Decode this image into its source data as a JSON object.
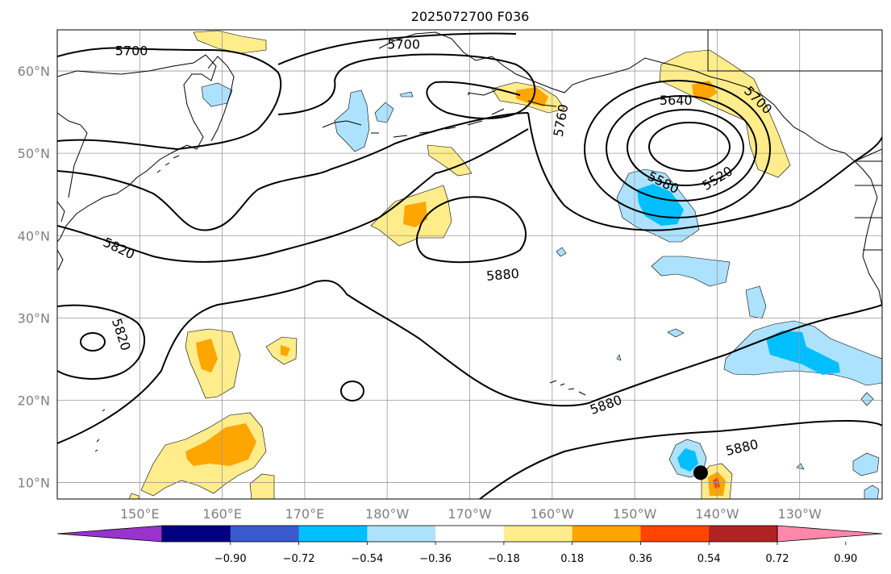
{
  "map": {
    "title": "2025072700 F036",
    "projection": "PlateCarree",
    "lon_range": [
      140,
      240
    ],
    "lat_range": [
      8,
      65
    ],
    "lat_ticks": [
      {
        "value": 10,
        "label": "10°N"
      },
      {
        "value": 20,
        "label": "20°N"
      },
      {
        "value": 30,
        "label": "30°N"
      },
      {
        "value": 40,
        "label": "40°N"
      },
      {
        "value": 50,
        "label": "50°N"
      },
      {
        "value": 60,
        "label": "60°N"
      }
    ],
    "lon_ticks": [
      {
        "value": 150,
        "label": "150°E"
      },
      {
        "value": 160,
        "label": "160°E"
      },
      {
        "value": 170,
        "label": "170°E"
      },
      {
        "value": 180,
        "label": "180°W"
      },
      {
        "value": 190,
        "label": "170°W"
      },
      {
        "value": 200,
        "label": "160°W"
      },
      {
        "value": 210,
        "label": "150°W"
      },
      {
        "value": 220,
        "label": "140°W"
      },
      {
        "value": 230,
        "label": "130°W"
      }
    ],
    "grid": true,
    "contour_labels": [
      {
        "text": "5700",
        "lon": 149,
        "lat": 62.5,
        "rot": 0
      },
      {
        "text": "5700",
        "lon": 182,
        "lat": 63.3,
        "rot": 0
      },
      {
        "text": "5760",
        "lon": 201,
        "lat": 54,
        "rot": -80
      },
      {
        "text": "5640",
        "lon": 215,
        "lat": 56.5,
        "rot": 0
      },
      {
        "text": "5700",
        "lon": 225,
        "lat": 56.5,
        "rot": 45
      },
      {
        "text": "5580",
        "lon": 213.5,
        "lat": 46.5,
        "rot": 27
      },
      {
        "text": "5520",
        "lon": 220,
        "lat": 47,
        "rot": -32
      },
      {
        "text": "5820",
        "lon": 147.5,
        "lat": 38.5,
        "rot": 25
      },
      {
        "text": "5880",
        "lon": 194,
        "lat": 35.3,
        "rot": -5
      },
      {
        "text": "5820",
        "lon": 147.8,
        "lat": 28,
        "rot": 72
      },
      {
        "text": "5880",
        "lon": 206.5,
        "lat": 19.5,
        "rot": -20
      },
      {
        "text": "5880",
        "lon": 223,
        "lat": 14.3,
        "rot": -13
      }
    ],
    "marker": {
      "label": "storm-center-marker",
      "lon": 218,
      "lat": 11.2
    }
  },
  "colorbar": {
    "colors": [
      "#9933cc",
      "#000080",
      "#3a5bd0",
      "#00bfff",
      "#ade2ff",
      "#ffffff",
      "#ffec8b",
      "#ffa500",
      "#ff4500",
      "#b22222",
      "#ff88aa"
    ],
    "tick_labels": [
      "−0.90",
      "−0.72",
      "−0.54",
      "−0.36",
      "−0.18",
      "0.18",
      "0.36",
      "0.54",
      "0.72",
      "0.90"
    ],
    "tick_values": [
      -0.9,
      -0.72,
      -0.54,
      -0.36,
      -0.18,
      0.18,
      0.36,
      0.54,
      0.72,
      0.9
    ]
  }
}
